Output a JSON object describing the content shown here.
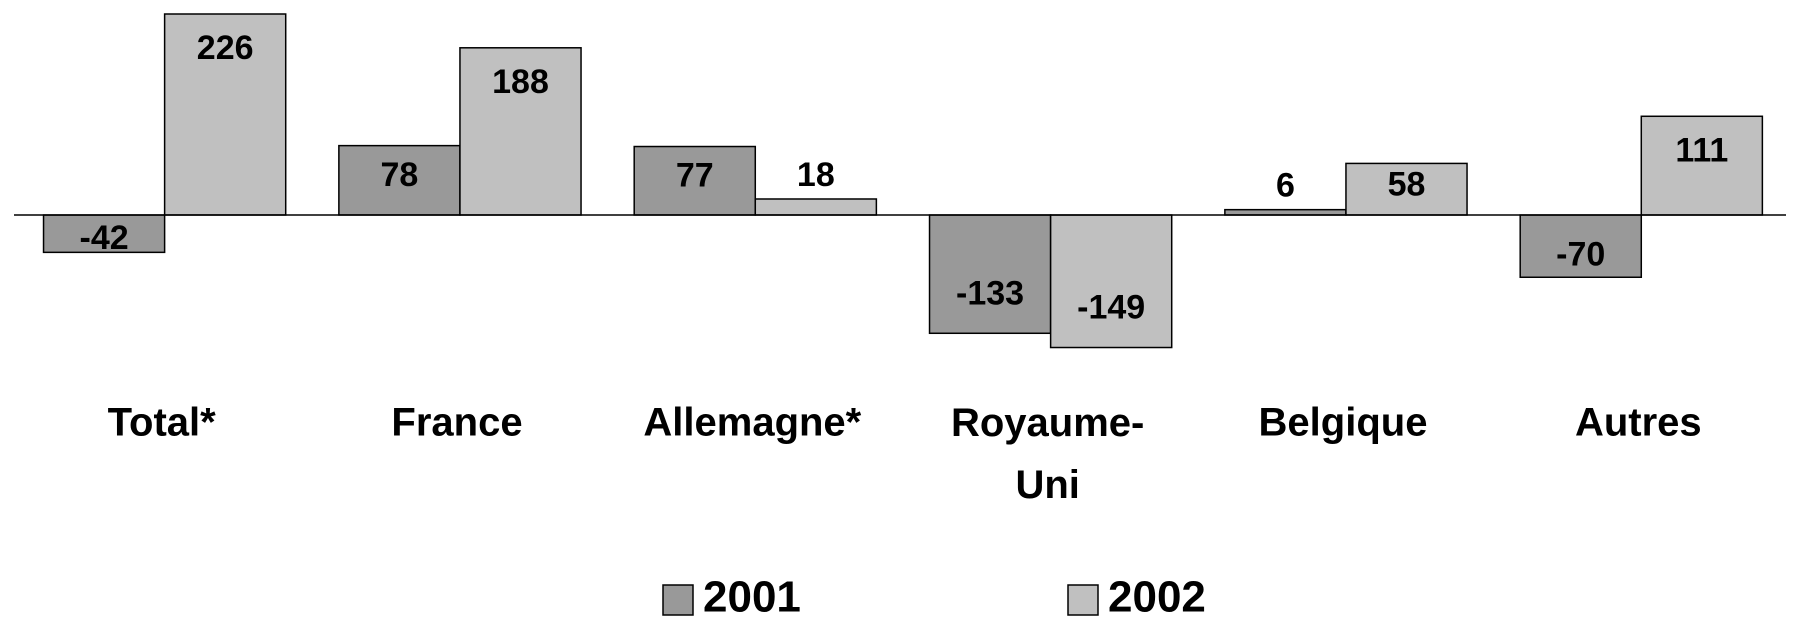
{
  "chart_data": {
    "type": "bar",
    "categories": [
      "Total*",
      "France",
      "Allemagne*",
      "Royaume-Uni",
      "Belgique",
      "Autres"
    ],
    "series": [
      {
        "name": "2001",
        "color": "#999999",
        "values": [
          -42,
          78,
          77,
          -133,
          6,
          -70
        ]
      },
      {
        "name": "2002",
        "color": "#c0c0c0",
        "values": [
          226,
          188,
          18,
          -149,
          58,
          111
        ]
      }
    ]
  }
}
